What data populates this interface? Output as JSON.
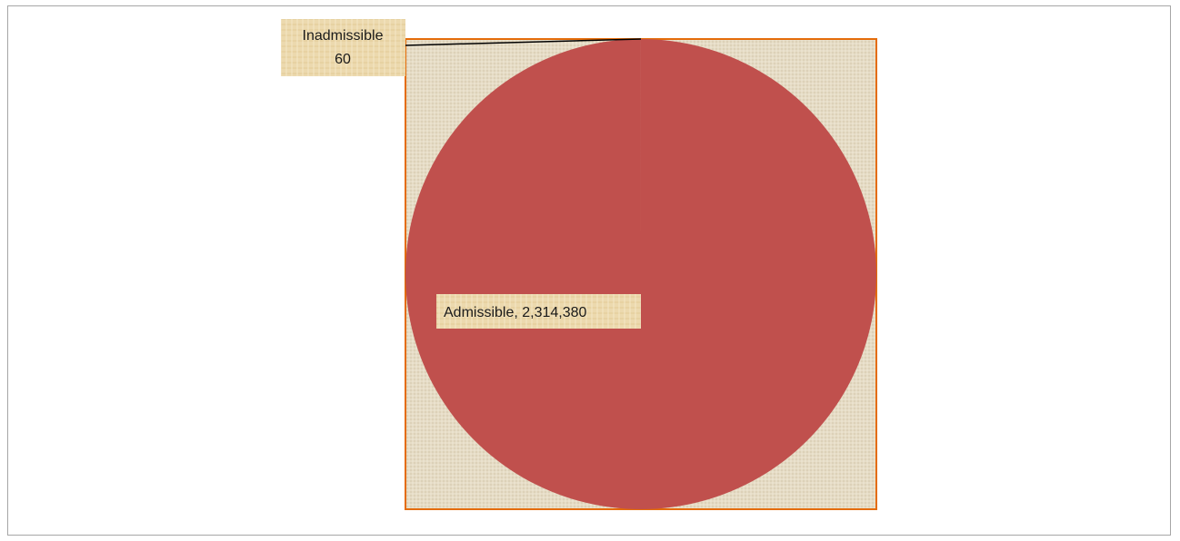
{
  "chart_data": {
    "type": "pie",
    "slices": [
      {
        "label": "Admissible",
        "value": 2314380,
        "value_text": "2,314,380",
        "color": "#c0504d"
      },
      {
        "label": "Inadmissible",
        "value": 60,
        "value_text": "60",
        "color": "#c0504d"
      }
    ],
    "plot_area_border_color": "#e46c0a",
    "plot_area_fill": "linen-texture",
    "label_fill": "#ecd9ae",
    "leader_line_color": "#000000",
    "legend": "none"
  }
}
